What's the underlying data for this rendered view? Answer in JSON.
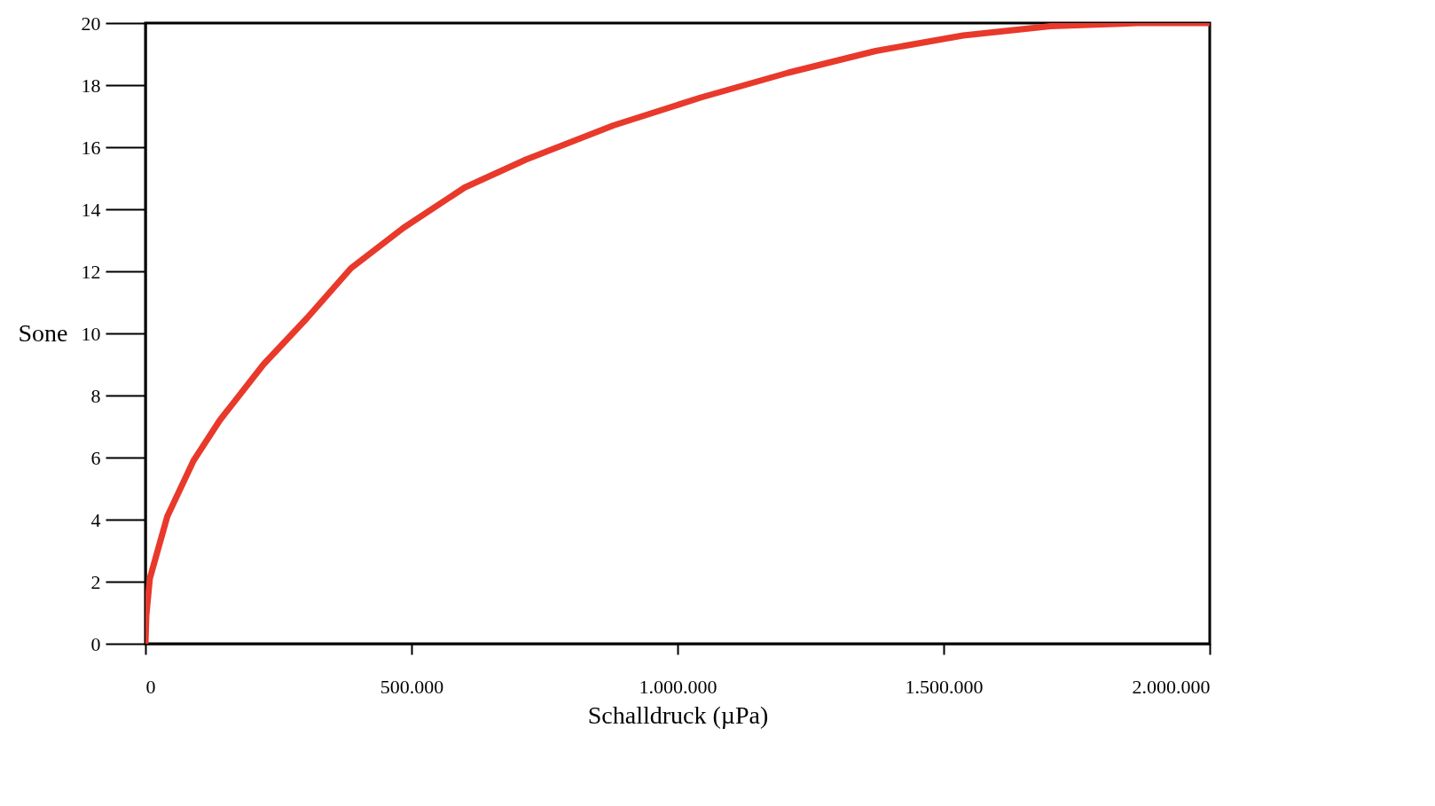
{
  "chart_data": {
    "type": "line",
    "xlabel": "Schalldruck (µPa)",
    "ylabel": "Sone",
    "x": [
      0,
      1600,
      8200,
      41000,
      90400,
      139700,
      221800,
      304000,
      386200,
      484800,
      599800,
      714900,
      879200,
      1043500,
      1207900,
      1372200,
      1536600,
      1700900,
      1865200,
      2000000
    ],
    "series": [
      {
        "color": "#e8392b",
        "values": [
          0,
          0.9,
          2.1,
          4.1,
          5.9,
          7.2,
          9.0,
          10.5,
          12.1,
          13.4,
          14.7,
          15.6,
          16.7,
          17.6,
          18.4,
          19.1,
          19.6,
          19.9,
          20,
          20
        ]
      }
    ],
    "xlim": [
      0,
      2000000
    ],
    "xticks": [
      0,
      {
        "value": 500000,
        "label": "500.000"
      },
      {
        "value": 1000000,
        "label": "1.000.000"
      },
      {
        "value": 1500000,
        "label": "1.500.000"
      },
      {
        "value": 2000000,
        "label": "2.000.000"
      }
    ],
    "ylim": [
      0,
      20
    ],
    "yticks": [
      0,
      2,
      4,
      6,
      8,
      10,
      12,
      14,
      16,
      18,
      20
    ],
    "grid": false,
    "marker": "none",
    "line_style": "solid"
  }
}
